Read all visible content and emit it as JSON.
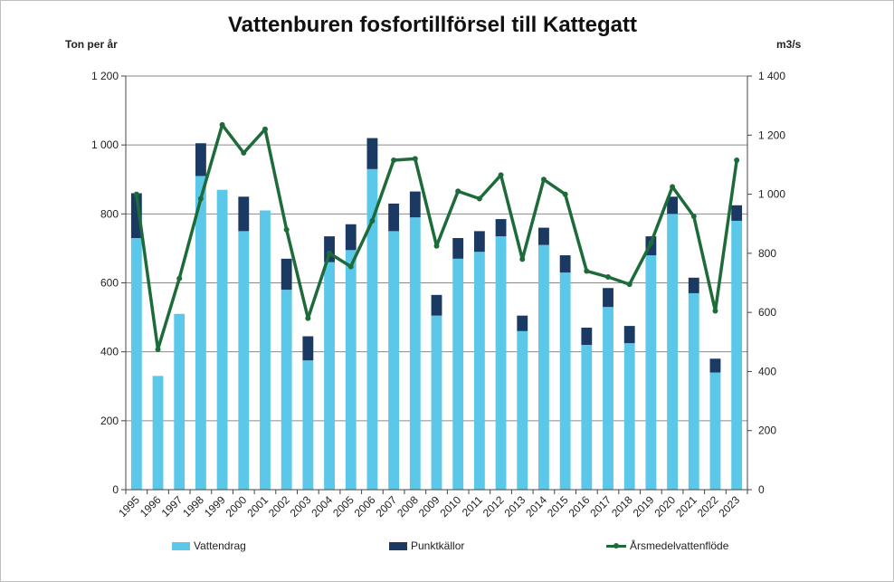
{
  "chart_data": {
    "type": "bar",
    "title": "Vattenburen fosfortillförsel till Kattegatt",
    "ylabel_left": "Ton per år",
    "ylabel_right": "m3/s",
    "ylim_left": [
      0,
      1200
    ],
    "ylim_right": [
      0,
      1400
    ],
    "yticks_left": [
      "0",
      "200",
      "400",
      "600",
      "800",
      "1 000",
      "1 200"
    ],
    "yticks_right": [
      "0",
      "200",
      "400",
      "600",
      "800",
      "1 000",
      "1 200",
      "1 400"
    ],
    "categories": [
      "1995",
      "1996",
      "1997",
      "1998",
      "1999",
      "2000",
      "2001",
      "2002",
      "2003",
      "2004",
      "2005",
      "2006",
      "2007",
      "2008",
      "2009",
      "2010",
      "2011",
      "2012",
      "2013",
      "2014",
      "2015",
      "2016",
      "2017",
      "2018",
      "2019",
      "2020",
      "2021",
      "2022",
      "2023"
    ],
    "series": [
      {
        "name": "Vattendrag",
        "type": "bar",
        "stack": "total",
        "axis": "left",
        "color": "#5bc8ea",
        "values": [
          730,
          330,
          510,
          910,
          870,
          750,
          810,
          580,
          375,
          660,
          695,
          930,
          750,
          790,
          505,
          670,
          690,
          735,
          460,
          710,
          630,
          420,
          530,
          425,
          680,
          800,
          570,
          340,
          780
        ]
      },
      {
        "name": "Punktkällor",
        "type": "bar",
        "stack": "total",
        "axis": "left",
        "color": "#1b3a63",
        "values": [
          130,
          0,
          0,
          95,
          0,
          100,
          0,
          90,
          70,
          75,
          75,
          90,
          80,
          75,
          60,
          60,
          60,
          50,
          45,
          50,
          50,
          50,
          55,
          50,
          55,
          50,
          45,
          40,
          45
        ]
      },
      {
        "name": "Årsmedelvattenflöde",
        "type": "line",
        "axis": "right",
        "color": "#1e6b3a",
        "values": [
          1000,
          475,
          715,
          985,
          1235,
          1140,
          1220,
          880,
          580,
          800,
          755,
          910,
          1115,
          1120,
          825,
          1010,
          985,
          1065,
          780,
          1050,
          1000,
          740,
          720,
          695,
          835,
          1025,
          925,
          605,
          1115
        ]
      }
    ]
  }
}
